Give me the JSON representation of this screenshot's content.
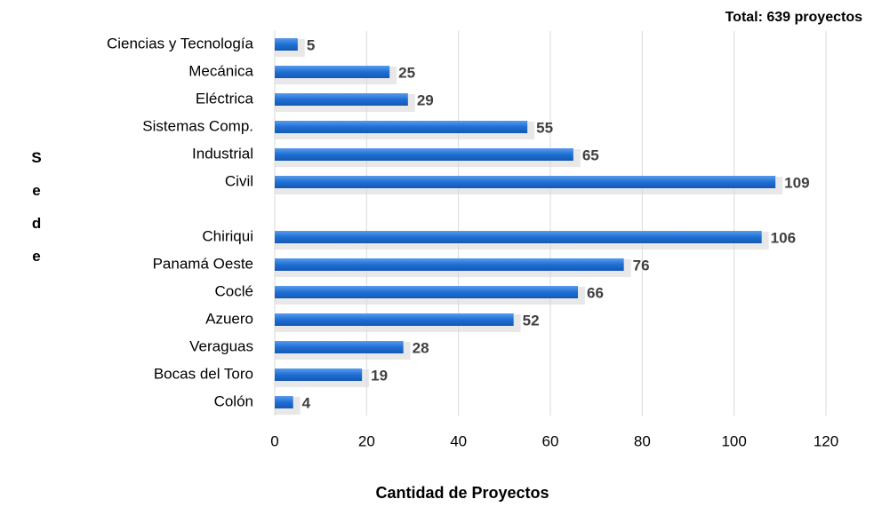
{
  "chart_data": {
    "type": "bar",
    "orientation": "horizontal",
    "title": "Total: 639 proyectos",
    "xlabel": "Cantidad de Proyectos",
    "ylabel": "Sede",
    "categories": [
      "Ciencias y Tecnología",
      "Mecánica",
      "Eléctrica",
      "Sistemas Comp.",
      "Industrial",
      "Civil",
      null,
      "Chiriqui",
      "Panamá Oeste",
      "Coclé",
      "Azuero",
      "Veraguas",
      "Bocas del Toro",
      "Colón"
    ],
    "values": [
      5,
      25,
      29,
      55,
      65,
      109,
      null,
      106,
      76,
      66,
      52,
      28,
      19,
      4
    ],
    "color": "#1f6fd6",
    "xlim": [
      0,
      120
    ],
    "xticks": [
      0,
      20,
      40,
      60,
      80,
      100,
      120
    ],
    "grid": true
  }
}
